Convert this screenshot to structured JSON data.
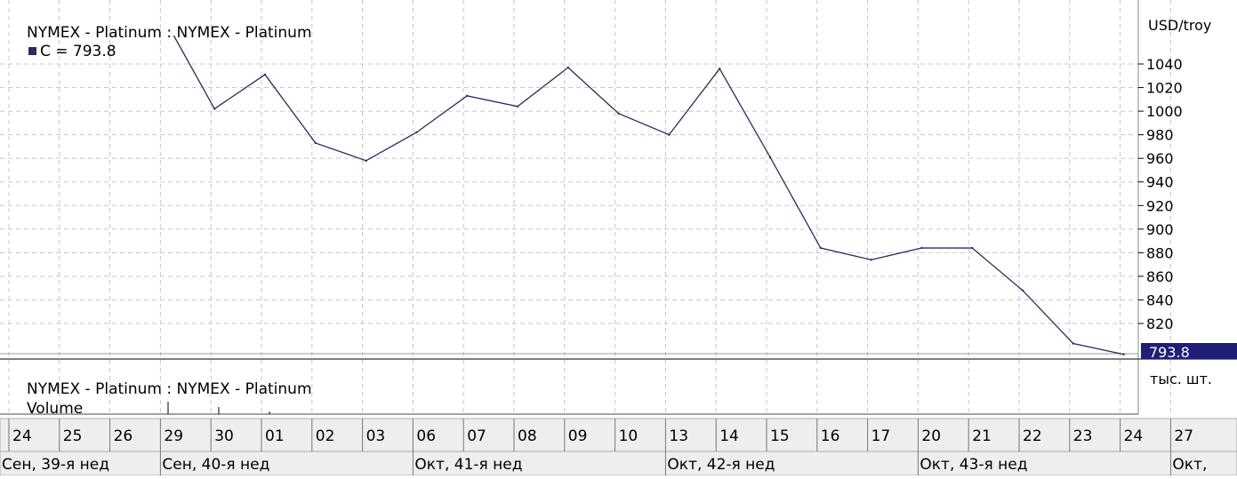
{
  "price_panel": {
    "title": "NYMEX - Platinum : NYMEX - Platinum",
    "legend_label": "C = 793.8",
    "unit_label": "USD/troy",
    "last_value_label": "793.8"
  },
  "volume_panel": {
    "title": "NYMEX - Platinum : NYMEX - Platinum",
    "legend_label": "Volume",
    "unit_label": "тыс. шт."
  },
  "colors": {
    "line": "#2b2b5e",
    "grid": "#c8c8c8",
    "axis": "#000000",
    "last_value_bg": "#1f1f7a",
    "axis_band_bg": "#eeeeee"
  },
  "chart_data": {
    "type": "line",
    "title": "NYMEX - Platinum : NYMEX - Platinum",
    "ylabel": "USD/troy",
    "ylim": [
      790,
      1055
    ],
    "y_ticks": [
      820,
      840,
      860,
      880,
      900,
      920,
      940,
      960,
      980,
      1000,
      1020,
      1040
    ],
    "grid": true,
    "legend": "top-left",
    "x": [
      "24",
      "25",
      "26",
      "29",
      "30",
      "01",
      "02",
      "03",
      "06",
      "07",
      "08",
      "09",
      "10",
      "13",
      "14",
      "15",
      "16",
      "17",
      "20",
      "21",
      "22",
      "23",
      "24",
      "27"
    ],
    "week_labels": [
      "Сен, 39-я нед",
      "Сен, 40-я нед",
      "Окт, 41-я нед",
      "Окт, 42-я нед",
      "Окт, 43-я нед",
      "Окт,"
    ],
    "series": [
      {
        "name": "C",
        "x": [
          "30",
          "01",
          "02",
          "03",
          "06",
          "07",
          "08",
          "09",
          "10",
          "13",
          "14",
          "15",
          "16",
          "17",
          "20",
          "21",
          "22",
          "23",
          "24"
        ],
        "values": [
          1002,
          1031,
          973,
          958,
          982,
          1013,
          1004,
          1037,
          998,
          980,
          1036,
          961,
          884,
          874,
          884,
          884,
          848,
          803,
          793.8
        ]
      }
    ]
  }
}
